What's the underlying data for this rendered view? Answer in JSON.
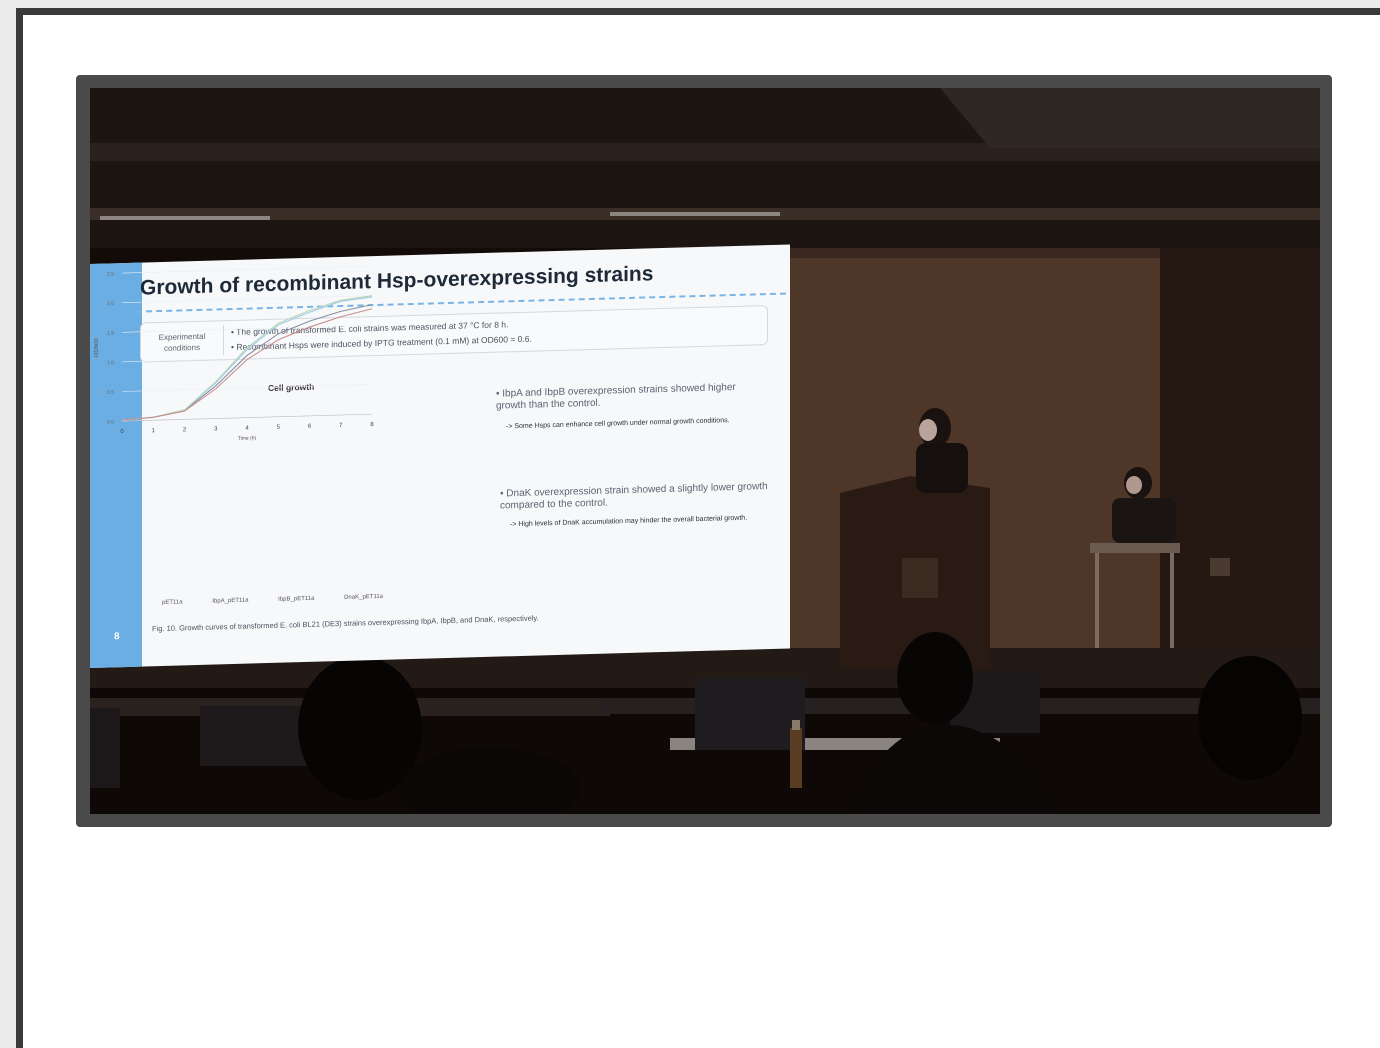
{
  "slide": {
    "title": "Growth of recombinant Hsp-overexpressing strains",
    "page_number": "8",
    "conditions_label": "Experimental conditions",
    "conditions": [
      "•  The growth of transformed E. coli strains was measured at 37 °C for 8 h.",
      "•  Recombinant Hsps were induced by IPTG treatment (0.1 mM) at OD600 = 0.6."
    ],
    "bullets": [
      {
        "text": "•   IbpA and IbpB overexpression strains showed higher growth than the control.",
        "note": "-> Some Hsps can enhance cell growth under normal growth conditions."
      },
      {
        "text": "•   DnaK overexpression strain showed a slightly lower growth compared to the control.",
        "note": "-> High levels of DnaK accumulation may hinder the overall bacterial growth."
      }
    ],
    "caption": "Fig. 10. Growth curves of transformed E. coli BL21 (DE3) strains overexpressing IbpA, IbpB, and DnaK, respectively.",
    "chart": {
      "title": "Cell growth",
      "xlabel": "Time (h)",
      "ylabel": "OD600",
      "x_ticks": [
        "0",
        "1",
        "2",
        "3",
        "4",
        "5",
        "6",
        "7",
        "8"
      ],
      "y_ticks": [
        "0.0",
        "0.5",
        "1.0",
        "1.5",
        "2.0",
        "2.5"
      ],
      "legend": [
        "pET11a",
        "IbpA_pET11a",
        "IbpB_pET11a",
        "DnaK_pET11a"
      ],
      "series": [
        {
          "name": "pET11a",
          "color": "#8a8fa0",
          "values": [
            0.02,
            0.05,
            0.15,
            0.55,
            1.05,
            1.4,
            1.6,
            1.75,
            1.85
          ]
        },
        {
          "name": "IbpA_pET11a",
          "color": "#9ecae8",
          "values": [
            0.02,
            0.05,
            0.16,
            0.6,
            1.15,
            1.55,
            1.75,
            1.92,
            1.98
          ]
        },
        {
          "name": "IbpB_pET11a",
          "color": "#b8d8b8",
          "values": [
            0.02,
            0.05,
            0.16,
            0.62,
            1.18,
            1.58,
            1.78,
            1.94,
            2.0
          ]
        },
        {
          "name": "DnaK_pET11a",
          "color": "#c89090",
          "values": [
            0.02,
            0.05,
            0.14,
            0.5,
            0.98,
            1.3,
            1.5,
            1.66,
            1.78
          ]
        }
      ],
      "ylim": [
        0,
        2.5
      ]
    }
  },
  "colors": {
    "frame": "#3a3a3a",
    "slide_accent": "#6aaee4",
    "room": "#120b08"
  }
}
